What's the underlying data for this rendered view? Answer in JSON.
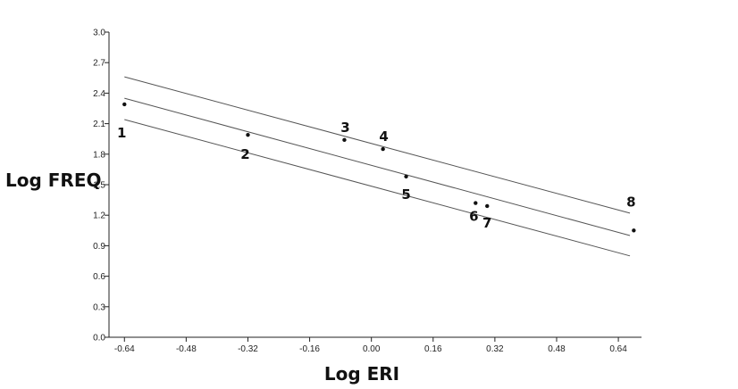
{
  "chart_data": {
    "type": "scatter",
    "title": "",
    "xlabel": "Log ERI",
    "ylabel": "Log FREQ",
    "xlim": [
      -0.68,
      0.7
    ],
    "ylim": [
      0.0,
      3.0
    ],
    "x_ticks": [
      "-0.64",
      "-0.48",
      "-0.32",
      "-0.16",
      "0.00",
      "0.16",
      "0.32",
      "0.48",
      "0.64"
    ],
    "x_tick_values": [
      -0.64,
      -0.48,
      -0.32,
      -0.16,
      0.0,
      0.16,
      0.32,
      0.48,
      0.64
    ],
    "y_ticks": [
      "0.0",
      "0.3",
      "0.6",
      "0.9",
      "1.2",
      "1.5",
      "1.8",
      "2.1",
      "2.4",
      "2.7",
      "3.0"
    ],
    "y_tick_values": [
      0.0,
      0.3,
      0.6,
      0.9,
      1.2,
      1.5,
      1.8,
      2.1,
      2.4,
      2.7,
      3.0
    ],
    "grid": false,
    "points": [
      {
        "label": "1",
        "x": -0.64,
        "y": 2.29
      },
      {
        "label": "2",
        "x": -0.32,
        "y": 1.99
      },
      {
        "label": "3",
        "x": -0.07,
        "y": 1.94
      },
      {
        "label": "4",
        "x": 0.03,
        "y": 1.85
      },
      {
        "label": "5",
        "x": 0.09,
        "y": 1.58
      },
      {
        "label": "6",
        "x": 0.27,
        "y": 1.32
      },
      {
        "label": "7",
        "x": 0.3,
        "y": 1.29
      },
      {
        "label": "8",
        "x": 0.68,
        "y": 1.05
      }
    ],
    "lines": [
      {
        "role": "upper",
        "x": [
          -0.64,
          0.67
        ],
        "y": [
          2.56,
          1.22
        ]
      },
      {
        "role": "fit",
        "x": [
          -0.64,
          0.67
        ],
        "y": [
          2.35,
          1.0
        ]
      },
      {
        "role": "lower",
        "x": [
          -0.64,
          0.67
        ],
        "y": [
          2.14,
          0.8
        ]
      }
    ]
  }
}
